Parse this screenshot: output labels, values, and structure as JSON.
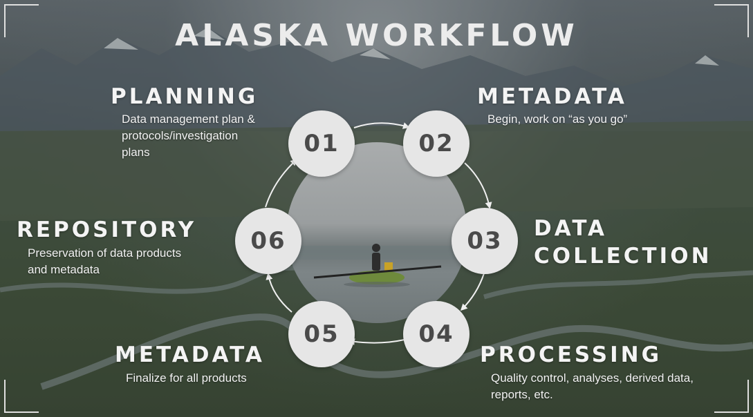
{
  "title": "ALASKA WORKFLOW",
  "colors": {
    "circle_fill": "#e6e6e6",
    "number_text": "#4a4a4a",
    "arrow": "#f0f0f0",
    "text": "#f4f4f4"
  },
  "steps": [
    {
      "number": "01",
      "title": "PLANNING",
      "description_lines": [
        "Data management plan &",
        "protocols/investigation",
        "plans"
      ]
    },
    {
      "number": "02",
      "title": "METADATA",
      "description_lines": [
        "Begin, work on “as you go”"
      ]
    },
    {
      "number": "03",
      "title_lines": [
        "DATA",
        "COLLECTION"
      ]
    },
    {
      "number": "04",
      "title": "PROCESSING",
      "description_lines": [
        "Quality control, analyses, derived data,",
        "reports, etc."
      ]
    },
    {
      "number": "05",
      "title": "METADATA",
      "description_lines": [
        "Finalize for all products"
      ]
    },
    {
      "number": "06",
      "title": "REPOSITORY",
      "description_lines": [
        "Preservation of data products",
        "and metadata"
      ]
    }
  ]
}
